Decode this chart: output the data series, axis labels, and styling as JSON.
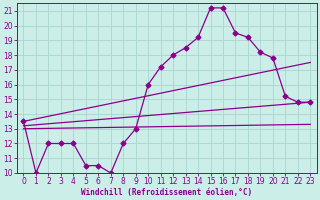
{
  "xlabel": "Windchill (Refroidissement éolien,°C)",
  "background_color": "#cceee8",
  "grid_color": "#aad4ce",
  "line_color": "#8b008b",
  "xlim": [
    -0.5,
    23.5
  ],
  "ylim": [
    10,
    21.5
  ],
  "xticks": [
    0,
    1,
    2,
    3,
    4,
    5,
    6,
    7,
    8,
    9,
    10,
    11,
    12,
    13,
    14,
    15,
    16,
    17,
    18,
    19,
    20,
    21,
    22,
    23
  ],
  "yticks": [
    10,
    11,
    12,
    13,
    14,
    15,
    16,
    17,
    18,
    19,
    20,
    21
  ],
  "series1_x": [
    0,
    1,
    2,
    3,
    4,
    5,
    6,
    7,
    8,
    9,
    10,
    11,
    12,
    13,
    14,
    15,
    16,
    17,
    18,
    19,
    20,
    21,
    22,
    23
  ],
  "series1_y": [
    13.5,
    10.0,
    12.0,
    12.0,
    12.0,
    10.5,
    10.5,
    10.0,
    12.0,
    13.0,
    16.0,
    17.2,
    18.0,
    18.5,
    19.2,
    21.2,
    21.2,
    19.5,
    19.2,
    18.2,
    17.8,
    15.2,
    14.8,
    14.8
  ],
  "series2_x": [
    0,
    23
  ],
  "series2_y": [
    13.5,
    17.5
  ],
  "series3_x": [
    0,
    23
  ],
  "series3_y": [
    13.2,
    14.8
  ],
  "series4_x": [
    0,
    23
  ],
  "series4_y": [
    13.0,
    13.3
  ],
  "markersize": 2.5,
  "linewidth": 0.9,
  "tick_fontsize": 5.5,
  "xlabel_fontsize": 5.5
}
